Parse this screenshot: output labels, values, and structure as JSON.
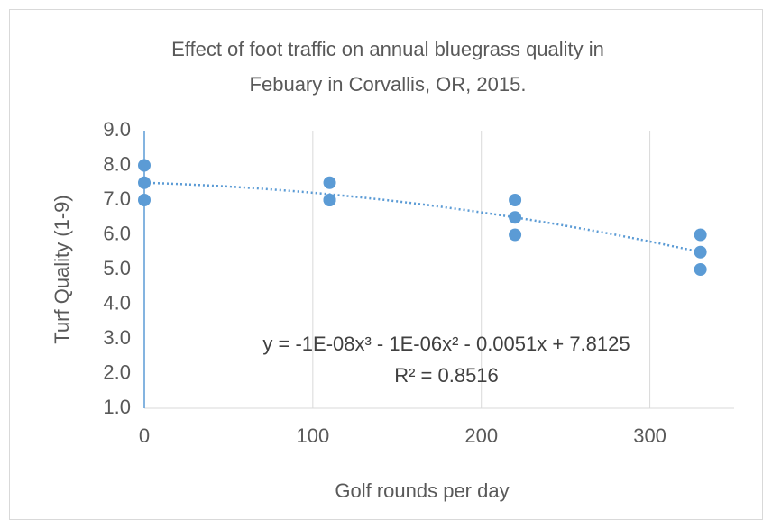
{
  "chart_data": {
    "type": "scatter",
    "title_lines": [
      "Effect of foot traffic on annual bluegrass quality in",
      "Febuary in Corvallis, OR, 2015."
    ],
    "x_label": "Golf rounds per day",
    "y_label": "Turf Quality (1-9)",
    "annotations": [
      "y = -1E-08x³ - 1E-06x² - 0.0051x + 7.8125",
      "R² = 0.8516"
    ],
    "series": [
      {
        "color": "#5b9bd5",
        "x": [
          0,
          0,
          0,
          110,
          110,
          110,
          220,
          220,
          220,
          330,
          330,
          330
        ],
        "values": [
          8,
          7.5,
          7,
          7.5,
          7,
          7,
          7,
          6.5,
          6,
          6,
          5.5,
          5
        ]
      }
    ],
    "trendline": "polynomial",
    "xlim": [
      0,
      350
    ],
    "xticks": [
      0,
      100,
      200,
      300
    ],
    "ylim": [
      1,
      9
    ],
    "yticks": [
      {
        "value": 1,
        "label": "1.0"
      },
      {
        "value": 2,
        "label": "2.0"
      },
      {
        "value": 3,
        "label": "3.0"
      },
      {
        "value": 4,
        "label": "4.0"
      },
      {
        "value": 5,
        "label": "5.0"
      },
      {
        "value": 6,
        "label": "6.0"
      },
      {
        "value": 7,
        "label": "7.0"
      },
      {
        "value": 8,
        "label": "8.0"
      },
      {
        "value": 9,
        "label": "9.0"
      }
    ],
    "grid": "x"
  }
}
